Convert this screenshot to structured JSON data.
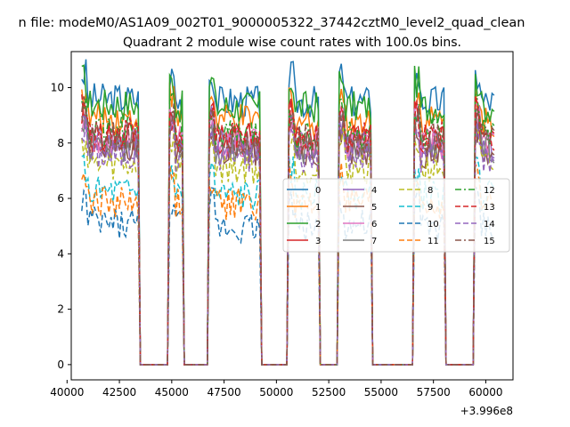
{
  "figure": {
    "suptitle": "n file: modeM0/AS1A09_002T01_9000005322_37442cztM0_level2_quad_clean"
  },
  "chart_data": {
    "type": "line",
    "title": "Quadrant 2 module wise count rates with 100.0s bins.",
    "xlabel": "",
    "ylabel": "",
    "x_offset_label": "+3.996e8",
    "xlim": [
      40200,
      61300
    ],
    "ylim": [
      -0.55,
      11.3
    ],
    "x_ticks": [
      40000,
      42500,
      45000,
      47500,
      50000,
      52500,
      55000,
      57500,
      60000
    ],
    "x_tick_labels": [
      "40000",
      "42500",
      "45000",
      "47500",
      "50000",
      "52500",
      "55000",
      "57500",
      "60000"
    ],
    "y_ticks": [
      0,
      2,
      4,
      6,
      8,
      10
    ],
    "y_tick_labels": [
      "0",
      "2",
      "4",
      "6",
      "8",
      "10"
    ],
    "grid": false,
    "legend_placement": "center-right",
    "legend_columns": 4,
    "segments": [
      {
        "start": 40700,
        "end": 43400,
        "rise_to": 43500
      },
      {
        "start": 44900,
        "end": 45500,
        "rise_to": 45600
      },
      {
        "start": 46800,
        "end": 49200,
        "rise_to": 49300
      },
      {
        "start": 50600,
        "end": 52000,
        "rise_to": 52100
      },
      {
        "start": 53000,
        "end": 54500,
        "rise_to": 54600
      },
      {
        "start": 56600,
        "end": 58000,
        "rise_to": 58100
      },
      {
        "start": 59500,
        "end": 60400,
        "rise_to": 60400
      }
    ],
    "series": [
      {
        "name": "0",
        "color": "#1f77b4",
        "dash": "solid",
        "level": 9.6
      },
      {
        "name": "1",
        "color": "#ff7f0e",
        "dash": "solid",
        "level": 8.9
      },
      {
        "name": "2",
        "color": "#2ca02c",
        "dash": "solid",
        "level": 9.4
      },
      {
        "name": "3",
        "color": "#d62728",
        "dash": "solid",
        "level": 8.2
      },
      {
        "name": "4",
        "color": "#9467bd",
        "dash": "solid",
        "level": 8.0
      },
      {
        "name": "5",
        "color": "#8c564b",
        "dash": "solid",
        "level": 7.8
      },
      {
        "name": "6",
        "color": "#e377c2",
        "dash": "solid",
        "level": 8.1
      },
      {
        "name": "7",
        "color": "#7f7f7f",
        "dash": "solid",
        "level": 7.9
      },
      {
        "name": "8",
        "color": "#bcbd22",
        "dash": "dashed",
        "level": 7.2
      },
      {
        "name": "9",
        "color": "#17becf",
        "dash": "dashed",
        "level": 6.2
      },
      {
        "name": "10",
        "color": "#1f77b4",
        "dash": "dashed",
        "level": 5.1
      },
      {
        "name": "11",
        "color": "#ff7f0e",
        "dash": "dashed",
        "level": 5.9
      },
      {
        "name": "12",
        "color": "#2ca02c",
        "dash": "dashdot",
        "level": 8.4
      },
      {
        "name": "13",
        "color": "#d62728",
        "dash": "dashed",
        "level": 8.3
      },
      {
        "name": "14",
        "color": "#9467bd",
        "dash": "dashed",
        "level": 7.6
      },
      {
        "name": "15",
        "color": "#8c564b",
        "dash": "dashdot",
        "level": 8.2
      }
    ]
  }
}
